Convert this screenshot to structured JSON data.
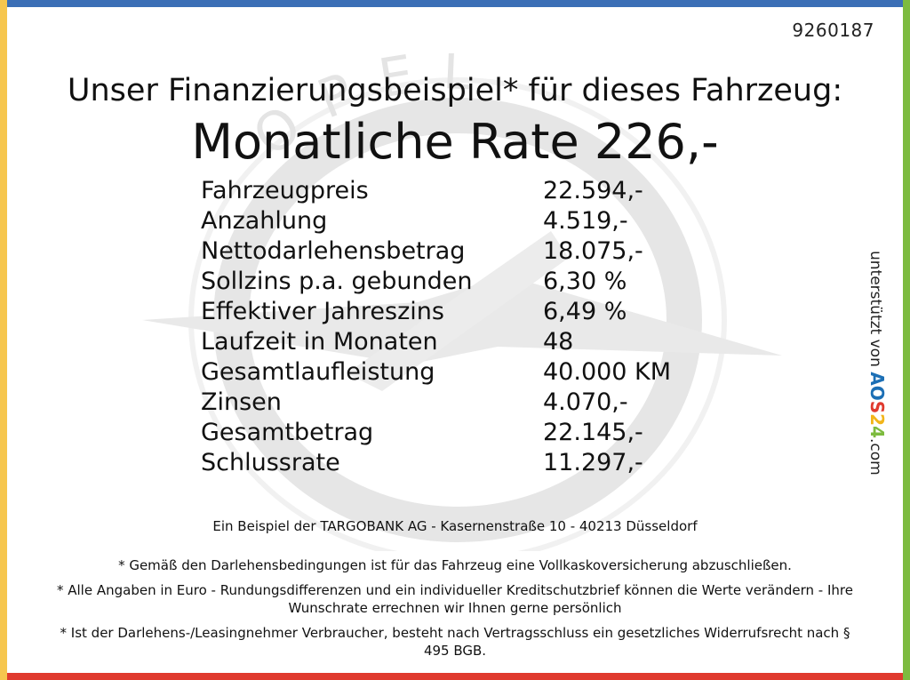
{
  "reference_number": "9260187",
  "headline": "Unser Finanzierungsbeispiel* für dieses Fahrzeug:",
  "monthly_rate": "Monatliche Rate 226,-",
  "rows": [
    {
      "label": "Fahrzeugpreis",
      "value": "22.594,-"
    },
    {
      "label": "Anzahlung",
      "value": "4.519,-"
    },
    {
      "label": "Nettodarlehensbetrag",
      "value": "18.075,-"
    },
    {
      "label": "Sollzins p.a. gebunden",
      "value": "6,30 %"
    },
    {
      "label": "Effektiver Jahreszins",
      "value": "6,49 %"
    },
    {
      "label": "Laufzeit in Monaten",
      "value": "48"
    },
    {
      "label": "Gesamtlaufleistung",
      "value": "40.000 KM"
    },
    {
      "label": "Zinsen",
      "value": "4.070,-"
    },
    {
      "label": "Gesamtbetrag",
      "value": "22.145,-"
    },
    {
      "label": "Schlussrate",
      "value": "11.297,-"
    }
  ],
  "bank_line": "Ein Beispiel der TARGOBANK AG - Kasernenstraße 10 - 40213 Düsseldorf",
  "notes": [
    "* Gemäß den Darlehensbedingungen ist für das Fahrzeug eine Vollkaskoversicherung abzuschließen.",
    "* Alle Angaben in Euro - Rundungsdifferenzen und ein individueller Kreditschutzbrief können die Werte verändern - Ihre Wunschrate errechnen wir Ihnen gerne persönlich",
    "* Ist der Darlehens-/Leasingnehmer Verbraucher, besteht nach Vertragsschluss ein gesetzliches Widerrufsrecht nach § 495 BGB."
  ],
  "side_text": {
    "prefix": "unterstützt von",
    "brand_a": "A",
    "brand_o": "O",
    "brand_s": "S",
    "brand_2": "2",
    "brand_4": "4",
    "suffix": ".com"
  },
  "watermark_text": "OPEL",
  "colors": {
    "top_bar": "#3b6fb6",
    "bottom_bar": "#e03a2e",
    "left_bar": "#f6c64e",
    "right_bar": "#7dbb3f"
  }
}
